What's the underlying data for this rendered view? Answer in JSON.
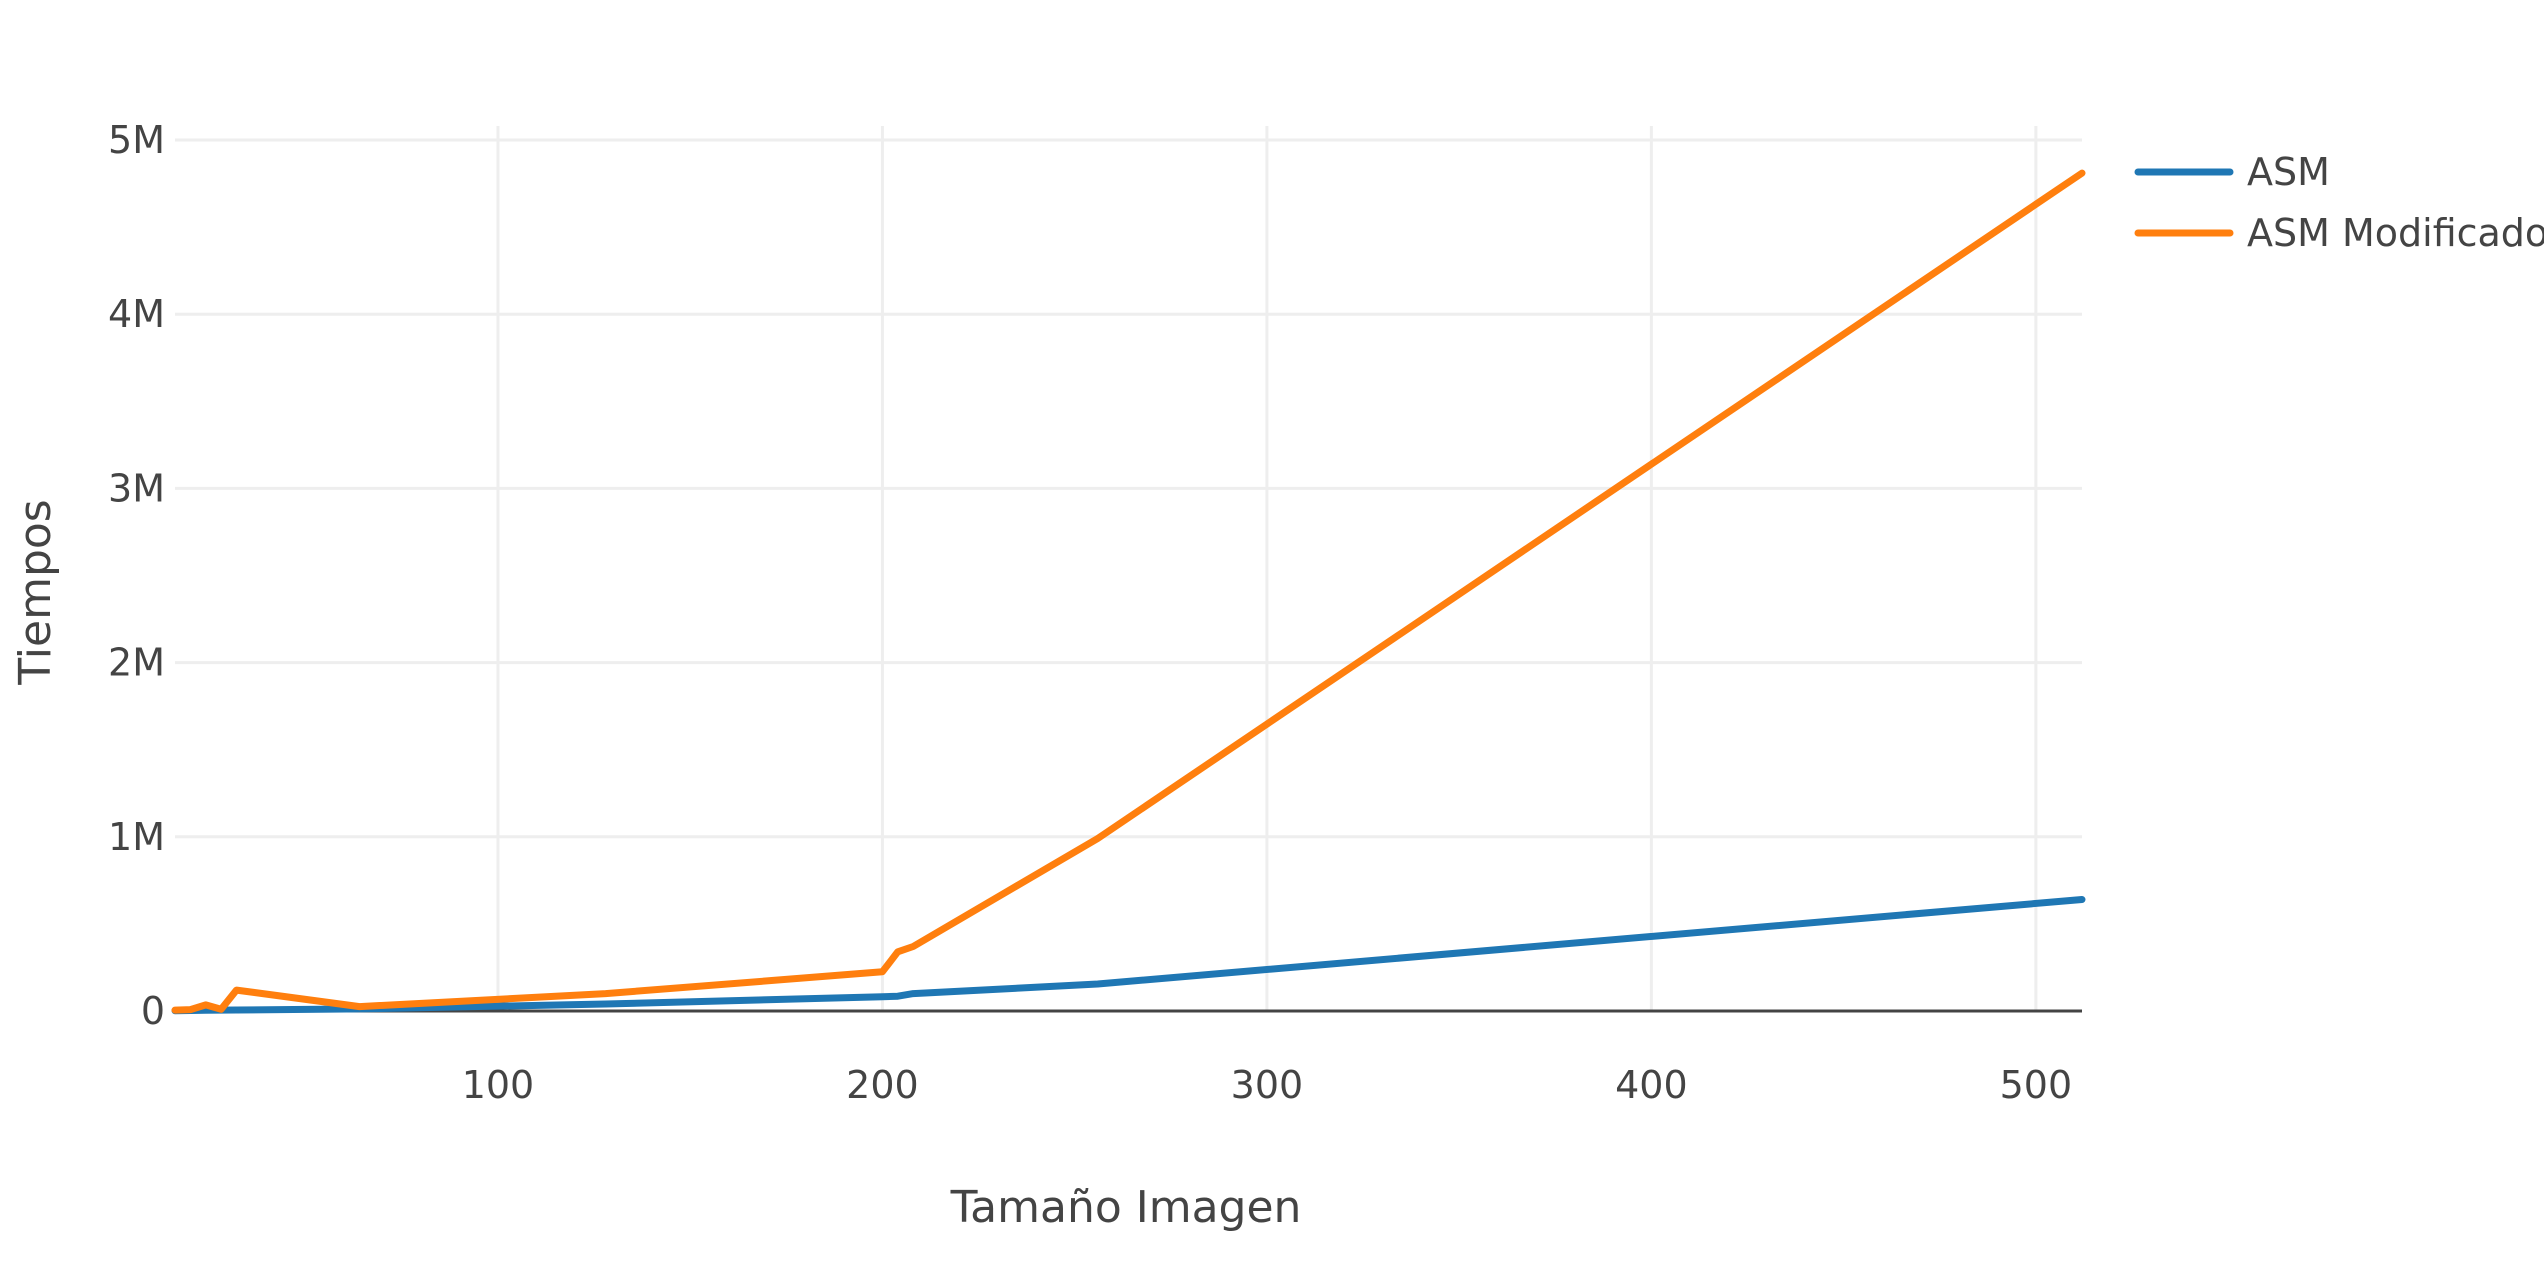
{
  "chart_data": {
    "type": "line",
    "title": "",
    "xlabel": "Tamaño Imagen",
    "ylabel": "Tiempos",
    "xlim": [
      16,
      512
    ],
    "ylim": [
      0,
      5000000
    ],
    "x_ticks": [
      100,
      200,
      300,
      400,
      500
    ],
    "x_tick_labels": [
      "100",
      "200",
      "300",
      "400",
      "500"
    ],
    "y_ticks": [
      0,
      1000000,
      2000000,
      3000000,
      4000000,
      5000000
    ],
    "y_tick_labels": [
      "0",
      "1M",
      "2M",
      "3M",
      "4M",
      "5M"
    ],
    "grid": true,
    "legend_position": "top-right",
    "series": [
      {
        "name": "ASM",
        "color": "#1f77b4",
        "x": [
          16,
          20,
          24,
          28,
          32,
          64,
          128,
          200,
          204,
          208,
          256,
          512
        ],
        "y": [
          2000,
          3000,
          4000,
          5000,
          6000,
          12000,
          40000,
          82000,
          85000,
          100000,
          155000,
          640000
        ]
      },
      {
        "name": "ASM Modificado",
        "color": "#ff7f0e",
        "x": [
          16,
          20,
          24,
          28,
          32,
          64,
          128,
          200,
          204,
          208,
          256,
          512
        ],
        "y": [
          5000,
          8000,
          35000,
          10000,
          120000,
          25000,
          100000,
          225000,
          340000,
          370000,
          990000,
          4810000
        ]
      }
    ]
  }
}
